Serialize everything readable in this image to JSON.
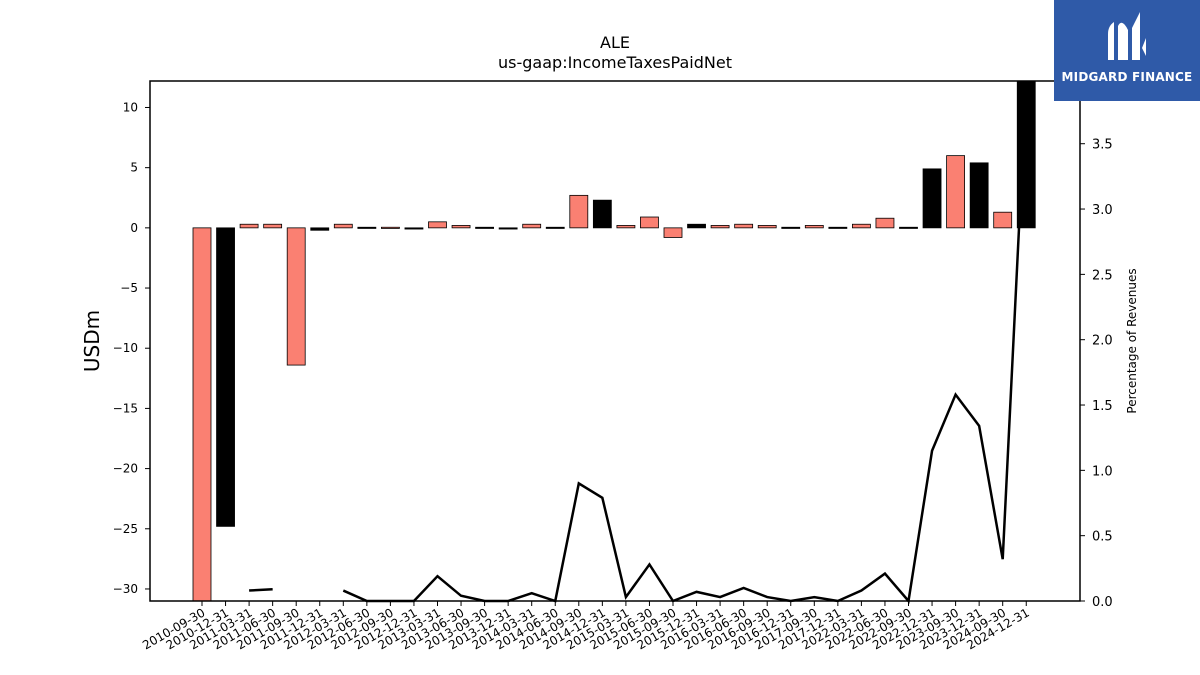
{
  "chart_data": {
    "type": "bar",
    "title": "ALE",
    "subtitle": "us-gaap:IncomeTaxesPaidNet",
    "ylabel": "USDm",
    "y2label": "Percentage of Revenues",
    "ylim": [
      -31,
      12.2
    ],
    "y2lim": [
      0,
      3.98
    ],
    "yticks": [
      10,
      5,
      0,
      -5,
      -10,
      -15,
      -20,
      -25,
      -30
    ],
    "y2ticks": [
      "0.0",
      "0.5",
      "1.0",
      "1.5",
      "2.0",
      "2.5",
      "3.0",
      "3.5"
    ],
    "categories": [
      "2010-09-30",
      "2010-12-31",
      "2011-03-31",
      "2011-06-30",
      "2011-09-30",
      "2011-12-31",
      "2012-03-31",
      "2012-06-30",
      "2012-09-30",
      "2012-12-31",
      "2013-03-31",
      "2013-06-30",
      "2013-09-30",
      "2013-12-31",
      "2014-03-31",
      "2014-06-30",
      "2014-09-30",
      "2014-12-31",
      "2015-03-31",
      "2015-06-30",
      "2015-09-30",
      "2015-12-31",
      "2016-03-31",
      "2016-06-30",
      "2016-09-30",
      "2016-12-31",
      "2017-09-30",
      "2017-12-31",
      "2022-03-31",
      "2022-06-30",
      "2022-09-30",
      "2022-12-31",
      "2023-09-30",
      "2023-12-31",
      "2024-09-30",
      "2024-12-31"
    ],
    "series": [
      {
        "values": [
          -31,
          -24.8,
          0.3,
          0.3,
          -11.4,
          -0.2,
          0.3,
          0.05,
          0.05,
          -0.1,
          0.5,
          0.2,
          0.05,
          -0.05,
          0.3,
          0.05,
          2.7,
          2.3,
          0.2,
          0.9,
          -0.8,
          0.3,
          0.2,
          0.3,
          0.2,
          0.05,
          0.2,
          0.05,
          0.3,
          0.8,
          0.05,
          4.9,
          6.0,
          5.4,
          1.3,
          12.2
        ],
        "colors": [
          "#fa8072",
          "#000000",
          "#fa8072",
          "#fa8072",
          "#fa8072",
          "#000000",
          "#fa8072",
          "#000000",
          "#fa8072",
          "#000000",
          "#fa8072",
          "#fa8072",
          "#000000",
          "#000000",
          "#fa8072",
          "#000000",
          "#fa8072",
          "#000000",
          "#fa8072",
          "#fa8072",
          "#fa8072",
          "#000000",
          "#fa8072",
          "#fa8072",
          "#fa8072",
          "#000000",
          "#fa8072",
          "#000000",
          "#fa8072",
          "#fa8072",
          "#000000",
          "#000000",
          "#fa8072",
          "#000000",
          "#fa8072",
          "#000000"
        ]
      },
      {
        "axis": "right",
        "values": [
          null,
          null,
          0.08,
          0.09,
          null,
          null,
          0.08,
          0.0,
          0.0,
          0.0,
          0.19,
          0.04,
          0.0,
          0.0,
          0.06,
          0.0,
          0.9,
          0.79,
          0.03,
          0.28,
          0.0,
          0.07,
          0.03,
          0.1,
          0.03,
          0.0,
          0.03,
          0.0,
          0.08,
          0.21,
          0.0,
          1.15,
          1.58,
          1.34,
          0.32,
          3.98
        ],
        "color": "#000000"
      }
    ],
    "grid": false
  },
  "logo": {
    "name": "MIDGARD FINANCE",
    "color": "#2f5aa8"
  }
}
